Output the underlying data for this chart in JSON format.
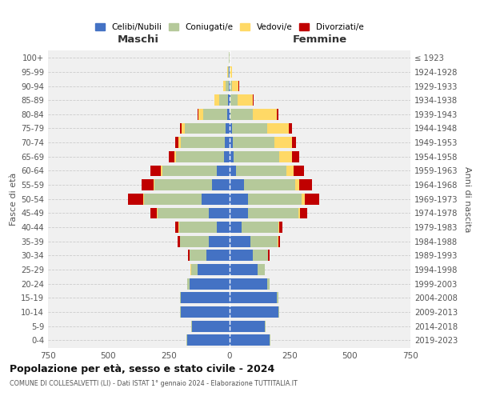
{
  "age_groups": [
    "0-4",
    "5-9",
    "10-14",
    "15-19",
    "20-24",
    "25-29",
    "30-34",
    "35-39",
    "40-44",
    "45-49",
    "50-54",
    "55-59",
    "60-64",
    "65-69",
    "70-74",
    "75-79",
    "80-84",
    "85-89",
    "90-94",
    "95-99",
    "100+"
  ],
  "birth_years": [
    "2019-2023",
    "2014-2018",
    "2009-2013",
    "2004-2008",
    "1999-2003",
    "1994-1998",
    "1989-1993",
    "1984-1988",
    "1979-1983",
    "1974-1978",
    "1969-1973",
    "1964-1968",
    "1959-1963",
    "1954-1958",
    "1949-1953",
    "1944-1948",
    "1939-1943",
    "1934-1938",
    "1929-1933",
    "1924-1928",
    "≤ 1923"
  ],
  "males": {
    "celibi": [
      175,
      155,
      200,
      200,
      165,
      130,
      95,
      85,
      50,
      85,
      115,
      70,
      50,
      22,
      18,
      15,
      8,
      4,
      2,
      1,
      0
    ],
    "coniugati": [
      2,
      3,
      3,
      4,
      10,
      28,
      68,
      118,
      158,
      212,
      238,
      238,
      228,
      198,
      182,
      168,
      98,
      38,
      14,
      4,
      1
    ],
    "vedovi": [
      0,
      0,
      0,
      0,
      0,
      1,
      1,
      2,
      2,
      2,
      3,
      4,
      5,
      8,
      10,
      14,
      22,
      18,
      8,
      2,
      0
    ],
    "divorziati": [
      0,
      0,
      0,
      0,
      0,
      2,
      5,
      8,
      12,
      28,
      62,
      52,
      42,
      22,
      12,
      8,
      4,
      2,
      1,
      0,
      0
    ]
  },
  "females": {
    "nubili": [
      168,
      148,
      205,
      198,
      158,
      118,
      98,
      88,
      52,
      78,
      78,
      60,
      28,
      18,
      15,
      10,
      6,
      4,
      2,
      1,
      0
    ],
    "coniugate": [
      2,
      3,
      3,
      4,
      10,
      28,
      62,
      112,
      152,
      208,
      222,
      212,
      208,
      188,
      172,
      148,
      92,
      32,
      8,
      2,
      1
    ],
    "vedove": [
      0,
      0,
      0,
      0,
      0,
      1,
      2,
      2,
      4,
      8,
      12,
      18,
      32,
      55,
      72,
      88,
      98,
      62,
      28,
      8,
      2
    ],
    "divorziate": [
      0,
      0,
      0,
      0,
      0,
      2,
      5,
      8,
      12,
      28,
      62,
      52,
      42,
      28,
      18,
      15,
      8,
      4,
      2,
      0,
      0
    ]
  },
  "colors": {
    "celibi_nubili": "#4472c4",
    "coniugati": "#b5c99a",
    "vedovi": "#ffd966",
    "divorziati": "#c00000"
  },
  "title": "Popolazione per età, sesso e stato civile - 2024",
  "subtitle": "COMUNE DI COLLESALVETTI (LI) - Dati ISTAT 1° gennaio 2024 - Elaborazione TUTTITALIA.IT",
  "xlabel_left": "Maschi",
  "xlabel_right": "Femmine",
  "ylabel_left": "Fasce di età",
  "ylabel_right": "Anni di nascita",
  "xlim": 750,
  "bg_color": "#f0f0f0",
  "grid_color": "#cccccc"
}
